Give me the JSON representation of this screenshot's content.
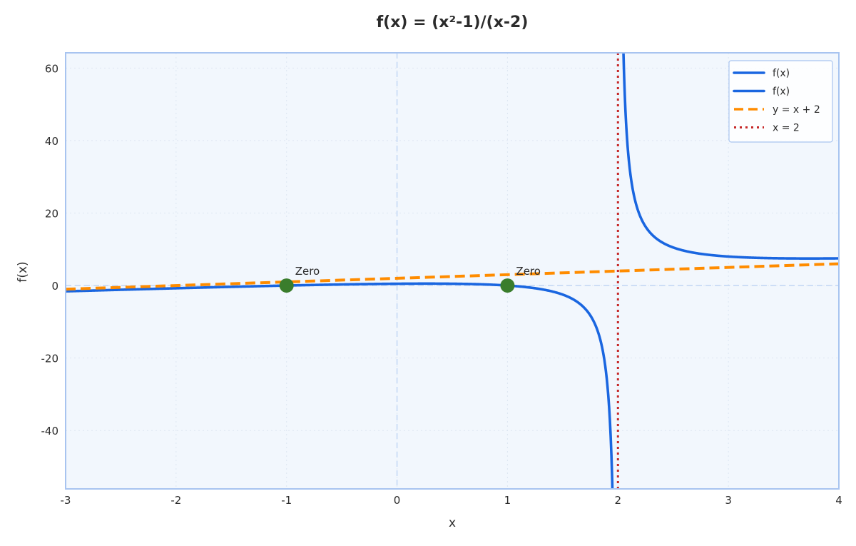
{
  "chart_data": {
    "type": "line",
    "title": "f(x) = (x²-1)/(x-2)",
    "xlabel": "x",
    "ylabel": "f(x)",
    "xlim": [
      -3,
      4
    ],
    "ylim": [
      -56.1,
      64.2
    ],
    "x_ticks": [
      -3,
      -2,
      -1,
      0,
      1,
      2,
      3,
      4
    ],
    "x_tick_labels": [
      "-3",
      "-2",
      "-1",
      "0",
      "1",
      "2",
      "3",
      "4"
    ],
    "y_ticks": [
      -40,
      -20,
      0,
      20,
      40,
      60
    ],
    "y_tick_labels": [
      "-40",
      "-20",
      "0",
      "20",
      "40",
      "60"
    ],
    "grid": true,
    "legend_position": "upper right",
    "series": [
      {
        "name": "f(x)",
        "style": "solid",
        "color": "#1a66e0",
        "domain": [
          -3,
          1.955
        ],
        "formula": "(x^2-1)/(x-2)",
        "x": [
          -3,
          -2,
          -1,
          0,
          0.5,
          1,
          1.5,
          1.8,
          1.9,
          1.95
        ],
        "values": [
          -1.6,
          -0.75,
          0,
          0.5,
          0.5,
          0,
          -2.5,
          -11.2,
          -26.1,
          -58.0
        ]
      },
      {
        "name": "f(x)",
        "style": "solid",
        "color": "#1a66e0",
        "domain": [
          2.045,
          4
        ],
        "formula": "(x^2-1)/(x-2)",
        "x": [
          2.05,
          2.1,
          2.2,
          2.5,
          3,
          3.5,
          4
        ],
        "values": [
          64.1,
          34.1,
          19.2,
          10.5,
          8.0,
          7.5,
          7.5
        ]
      },
      {
        "name": "y = x + 2",
        "style": "dashed",
        "color": "#ff8c00",
        "x": [
          -3,
          4
        ],
        "values": [
          -1,
          6
        ]
      },
      {
        "name": "x = 2",
        "style": "dotted",
        "color": "#c62828",
        "x": [
          2,
          2
        ],
        "values": [
          -56.1,
          64.2
        ]
      }
    ],
    "points": [
      {
        "x": -1,
        "y": 0,
        "label": "Zero",
        "color": "#3a7d2c"
      },
      {
        "x": 1,
        "y": 0,
        "label": "Zero",
        "color": "#3a7d2c"
      }
    ],
    "reference_lines": [
      {
        "orientation": "horizontal",
        "value": 0,
        "style": "dashed",
        "color": "#c5d8f5"
      },
      {
        "orientation": "vertical",
        "value": 0,
        "style": "dashed",
        "color": "#c5d8f5"
      }
    ],
    "colors": {
      "plot_background": "#f2f7fd",
      "frame": "#a8c4f0",
      "grid": "#dde6f2",
      "text": "#2b2b2b"
    }
  }
}
